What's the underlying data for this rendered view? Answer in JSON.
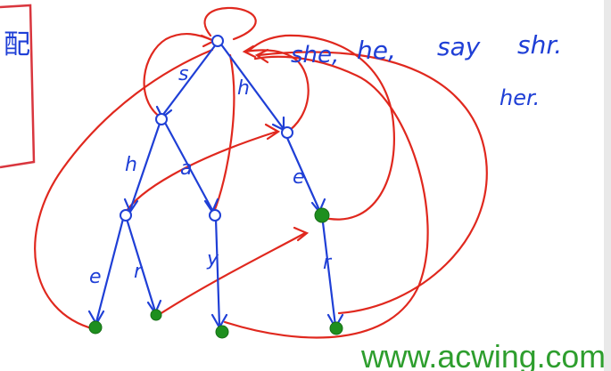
{
  "colors": {
    "trie_edges": "#1f3fd6",
    "fail_links": "#e0281e",
    "word_end_marker": "#1e8f1e",
    "watermark": "#2e9e2e",
    "panel_border": "#d9363e"
  },
  "left_panel_glyph": "配",
  "words": [
    "she,",
    "he,",
    "say",
    "shr.",
    "her."
  ],
  "trie": {
    "edge_labels": [
      "s",
      "h",
      "h",
      "a",
      "e",
      "e",
      "r",
      "y",
      "r"
    ],
    "nodes": [
      {
        "id": "root",
        "word_end": false
      },
      {
        "id": "s",
        "word_end": false
      },
      {
        "id": "h",
        "word_end": false
      },
      {
        "id": "sh",
        "word_end": false
      },
      {
        "id": "sa",
        "word_end": false
      },
      {
        "id": "he",
        "word_end": true
      },
      {
        "id": "she",
        "word_end": true
      },
      {
        "id": "shr",
        "word_end": true
      },
      {
        "id": "say",
        "word_end": true
      },
      {
        "id": "her",
        "word_end": true
      }
    ]
  },
  "watermark_text": "www.acwing.com"
}
